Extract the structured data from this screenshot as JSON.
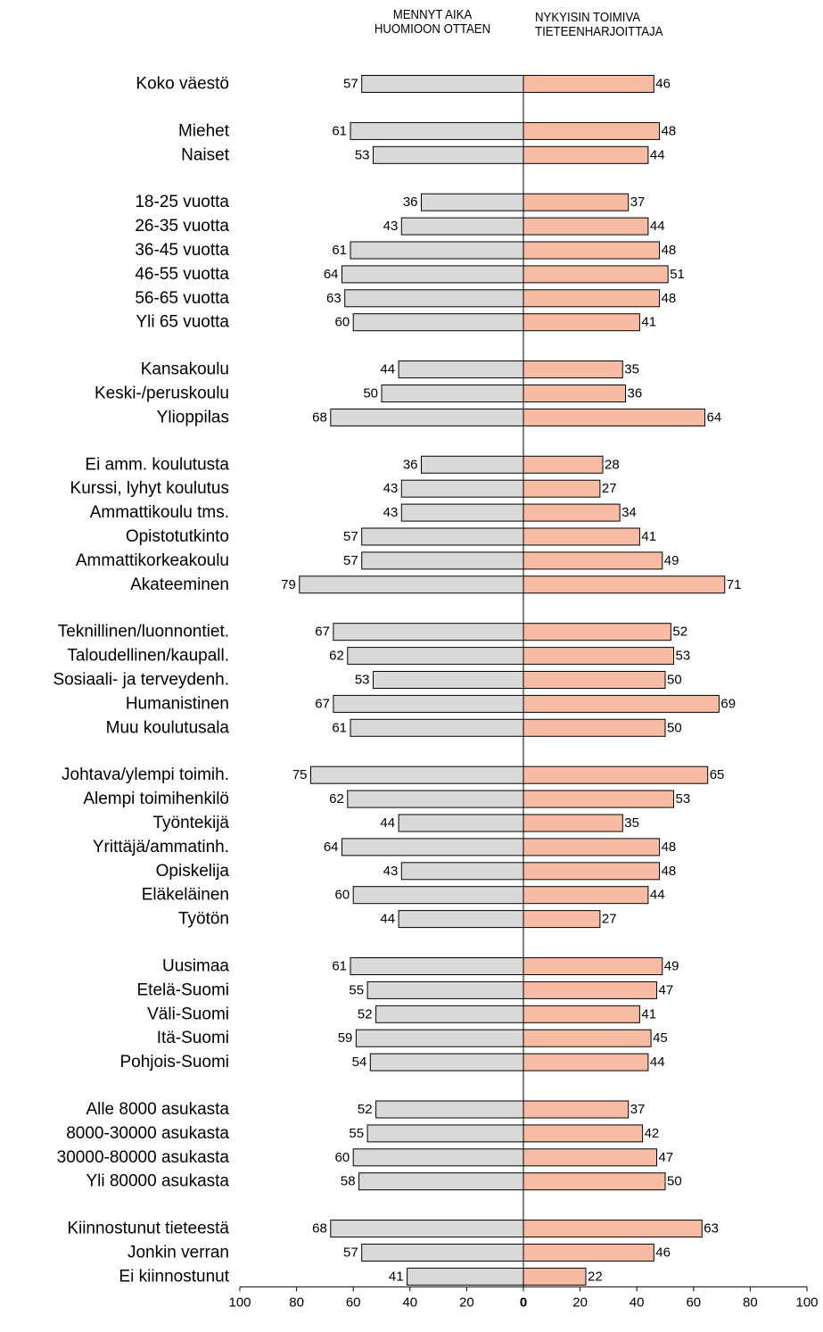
{
  "chart_data": {
    "type": "bar",
    "orientation": "horizontal",
    "layout": "diverging",
    "left_header": [
      "MENNYT AIKA",
      "HUOMIOON OTTAEN"
    ],
    "right_header": [
      "NYKYISIN TOIMIVA",
      "TIETEENHARJOITTAJA"
    ],
    "series": [
      {
        "name": "MENNYT AIKA HUOMIOON OTTAEN",
        "color": "#d9d9d9",
        "side": "left"
      },
      {
        "name": "NYKYISIN TOIMIVA TIETEENHARJOITTAJA",
        "color": "#f8bca4",
        "side": "right"
      }
    ],
    "axis": {
      "ticks": [
        "100",
        "80",
        "60",
        "40",
        "20",
        "0",
        "20",
        "40",
        "60",
        "80",
        "100"
      ],
      "range": [
        0,
        100
      ]
    },
    "groups": [
      {
        "items": [
          {
            "label": "Koko väestö",
            "left": 57,
            "right": 46
          }
        ]
      },
      {
        "items": [
          {
            "label": "Miehet",
            "left": 61,
            "right": 48
          },
          {
            "label": "Naiset",
            "left": 53,
            "right": 44
          }
        ]
      },
      {
        "items": [
          {
            "label": "18-25 vuotta",
            "left": 36,
            "right": 37
          },
          {
            "label": "26-35 vuotta",
            "left": 43,
            "right": 44
          },
          {
            "label": "36-45 vuotta",
            "left": 61,
            "right": 48
          },
          {
            "label": "46-55 vuotta",
            "left": 64,
            "right": 51
          },
          {
            "label": "56-65 vuotta",
            "left": 63,
            "right": 48
          },
          {
            "label": "Yli 65 vuotta",
            "left": 60,
            "right": 41
          }
        ]
      },
      {
        "items": [
          {
            "label": "Kansakoulu",
            "left": 44,
            "right": 35
          },
          {
            "label": "Keski-/peruskoulu",
            "left": 50,
            "right": 36
          },
          {
            "label": "Ylioppilas",
            "left": 68,
            "right": 64
          }
        ]
      },
      {
        "items": [
          {
            "label": "Ei amm. koulutusta",
            "left": 36,
            "right": 28
          },
          {
            "label": "Kurssi, lyhyt koulutus",
            "left": 43,
            "right": 27
          },
          {
            "label": "Ammattikoulu tms.",
            "left": 43,
            "right": 34
          },
          {
            "label": "Opistotutkinto",
            "left": 57,
            "right": 41
          },
          {
            "label": "Ammattikorkeakoulu",
            "left": 57,
            "right": 49
          },
          {
            "label": "Akateeminen",
            "left": 79,
            "right": 71
          }
        ]
      },
      {
        "items": [
          {
            "label": "Teknillinen/luonnontiet.",
            "left": 67,
            "right": 52
          },
          {
            "label": "Taloudellinen/kaupall.",
            "left": 62,
            "right": 53
          },
          {
            "label": "Sosiaali- ja terveydenh.",
            "left": 53,
            "right": 50
          },
          {
            "label": "Humanistinen",
            "left": 67,
            "right": 69
          },
          {
            "label": "Muu koulutusala",
            "left": 61,
            "right": 50
          }
        ]
      },
      {
        "items": [
          {
            "label": "Johtava/ylempi toimih.",
            "left": 75,
            "right": 65
          },
          {
            "label": "Alempi toimihenkilö",
            "left": 62,
            "right": 53
          },
          {
            "label": "Työntekijä",
            "left": 44,
            "right": 35
          },
          {
            "label": "Yrittäjä/ammatinh.",
            "left": 64,
            "right": 48
          },
          {
            "label": "Opiskelija",
            "left": 43,
            "right": 48
          },
          {
            "label": "Eläkeläinen",
            "left": 60,
            "right": 44
          },
          {
            "label": "Työtön",
            "left": 44,
            "right": 27
          }
        ]
      },
      {
        "items": [
          {
            "label": "Uusimaa",
            "left": 61,
            "right": 49
          },
          {
            "label": "Etelä-Suomi",
            "left": 55,
            "right": 47
          },
          {
            "label": "Väli-Suomi",
            "left": 52,
            "right": 41
          },
          {
            "label": "Itä-Suomi",
            "left": 59,
            "right": 45
          },
          {
            "label": "Pohjois-Suomi",
            "left": 54,
            "right": 44
          }
        ]
      },
      {
        "items": [
          {
            "label": "Alle 8000 asukasta",
            "left": 52,
            "right": 37
          },
          {
            "label": "8000-30000 asukasta",
            "left": 55,
            "right": 42
          },
          {
            "label": "30000-80000 asukasta",
            "left": 60,
            "right": 47
          },
          {
            "label": "Yli 80000 asukasta",
            "left": 58,
            "right": 50
          }
        ]
      },
      {
        "items": [
          {
            "label": "Kiinnostunut tieteestä",
            "left": 68,
            "right": 63
          },
          {
            "label": "Jonkin verran",
            "left": 57,
            "right": 46
          },
          {
            "label": "Ei kiinnostunut",
            "left": 41,
            "right": 22
          }
        ]
      }
    ]
  }
}
